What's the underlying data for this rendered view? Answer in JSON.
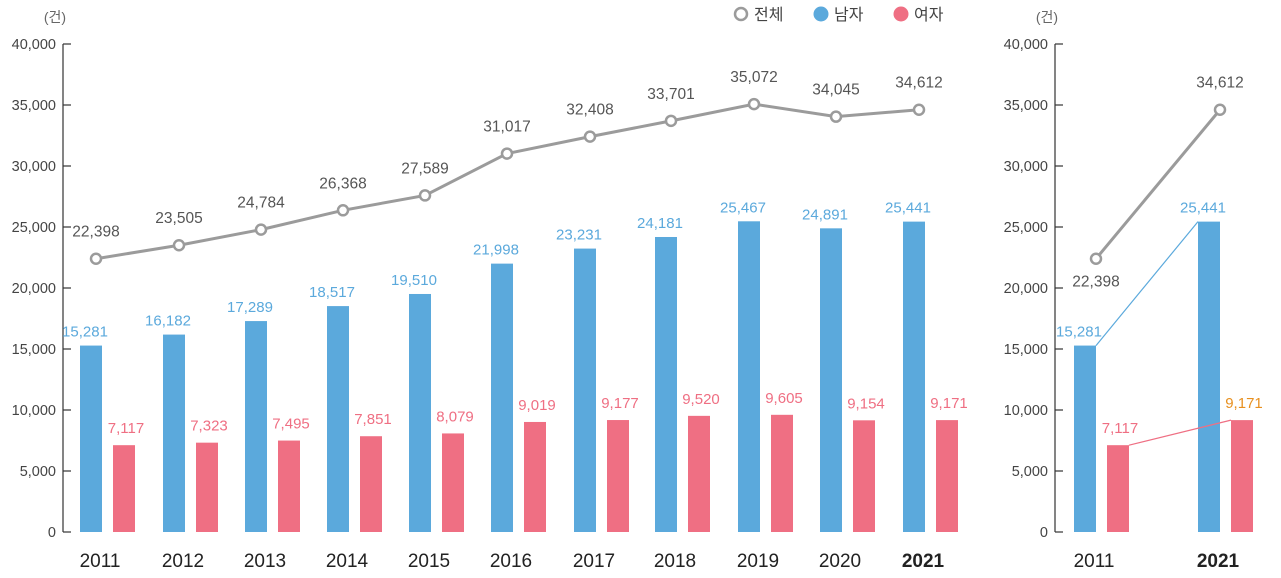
{
  "chart_data": [
    {
      "type": "bar",
      "unit_label": "(건)",
      "categories": [
        "2011",
        "2012",
        "2013",
        "2014",
        "2015",
        "2016",
        "2017",
        "2018",
        "2019",
        "2020",
        "2021"
      ],
      "bold_category": "2021",
      "ylim": [
        0,
        40000
      ],
      "yticks": [
        0,
        5000,
        10000,
        15000,
        20000,
        25000,
        30000,
        35000,
        40000
      ],
      "ytick_labels": [
        "0",
        "5,000",
        "10,000",
        "15,000",
        "20,000",
        "25,000",
        "30,000",
        "35,000",
        "40,000"
      ],
      "series": [
        {
          "name": "전체",
          "kind": "line",
          "color": "#9b9b9b",
          "values": [
            22398,
            23505,
            24784,
            26368,
            27589,
            31017,
            32408,
            33701,
            35072,
            34045,
            34612
          ],
          "labels": [
            "22,398",
            "23,505",
            "24,784",
            "26,368",
            "27,589",
            "31,017",
            "32,408",
            "33,701",
            "35,072",
            "34,045",
            "34,612"
          ]
        },
        {
          "name": "남자",
          "kind": "bar",
          "color": "#5ba9dc",
          "values": [
            15281,
            16182,
            17289,
            18517,
            19510,
            21998,
            23231,
            24181,
            25467,
            24891,
            25441
          ],
          "labels": [
            "15,281",
            "16,182",
            "17,289",
            "18,517",
            "19,510",
            "21,998",
            "23,231",
            "24,181",
            "25,467",
            "24,891",
            "25,441"
          ]
        },
        {
          "name": "여자",
          "kind": "bar",
          "color": "#ef6f83",
          "values": [
            7117,
            7323,
            7495,
            7851,
            8079,
            9019,
            9177,
            9520,
            9605,
            9154,
            9171
          ],
          "labels": [
            "7,117",
            "7,323",
            "7,495",
            "7,851",
            "8,079",
            "9,019",
            "9,177",
            "9,520",
            "9,605",
            "9,154",
            "9,171"
          ]
        }
      ],
      "legend": [
        {
          "name": "전체",
          "color": "#9b9b9b",
          "marker": "ring"
        },
        {
          "name": "남자",
          "color": "#5ba9dc",
          "marker": "dot"
        },
        {
          "name": "여자",
          "color": "#ef6f83",
          "marker": "dot"
        }
      ]
    },
    {
      "type": "bar",
      "unit_label": "(건)",
      "categories": [
        "2011",
        "2021"
      ],
      "bold_category": "2021",
      "ylim": [
        0,
        40000
      ],
      "yticks": [
        0,
        5000,
        10000,
        15000,
        20000,
        25000,
        30000,
        35000,
        40000
      ],
      "ytick_labels": [
        "0",
        "5,000",
        "10,000",
        "15,000",
        "20,000",
        "25,000",
        "30,000",
        "35,000",
        "40,000"
      ],
      "series": [
        {
          "name": "전체",
          "kind": "line",
          "color": "#9b9b9b",
          "values": [
            22398,
            34612
          ],
          "labels": [
            "22,398",
            "34,612"
          ]
        },
        {
          "name": "남자",
          "kind": "bar",
          "color": "#5ba9dc",
          "values": [
            15281,
            25441
          ],
          "labels": [
            "15,281",
            "25,441"
          ]
        },
        {
          "name": "여자",
          "kind": "bar",
          "color": "#ef6f83",
          "values": [
            7117,
            9171
          ],
          "labels": [
            "7,117",
            "9,171"
          ]
        }
      ],
      "highlight_label_color": "#e8901f"
    }
  ]
}
